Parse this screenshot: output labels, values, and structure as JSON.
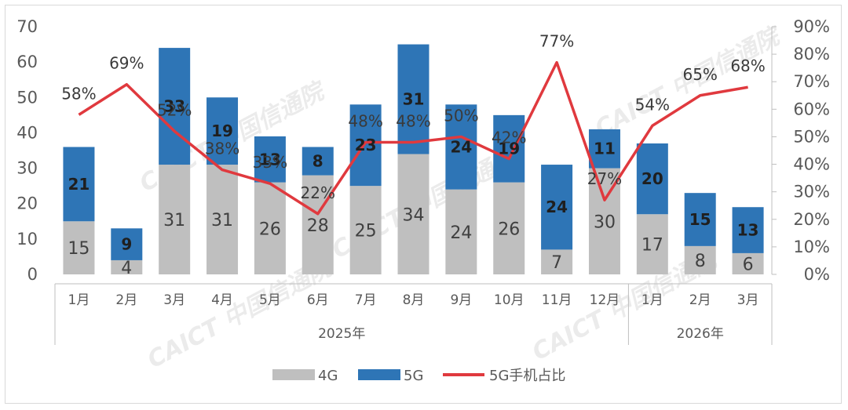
{
  "chart_data": {
    "type": "bar",
    "stacked": true,
    "categories": [
      "1月",
      "2月",
      "3月",
      "4月",
      "5月",
      "6月",
      "7月",
      "8月",
      "9月",
      "10月",
      "11月",
      "12月",
      "1月",
      "2月",
      "3月"
    ],
    "groups": [
      {
        "label": "2025年",
        "count": 12
      },
      {
        "label": "2026年",
        "count": 3
      }
    ],
    "series": [
      {
        "name": "4G",
        "color": "#bfbfbf",
        "values": [
          15,
          4,
          31,
          31,
          26,
          28,
          25,
          34,
          24,
          26,
          7,
          30,
          17,
          8,
          6
        ]
      },
      {
        "name": "5G",
        "color": "#2e75b6",
        "values": [
          21,
          9,
          33,
          19,
          13,
          8,
          23,
          31,
          24,
          19,
          24,
          11,
          20,
          15,
          13
        ]
      }
    ],
    "line_series": {
      "name": "5G手机占比",
      "color": "#e0393e",
      "axis": "right",
      "values": [
        58,
        69,
        52,
        38,
        33,
        22,
        48,
        48,
        50,
        42,
        77,
        27,
        54,
        65,
        68
      ],
      "labels": [
        "58%",
        "69%",
        "52%",
        "38%",
        "33%",
        "22%",
        "48%",
        "48%",
        "50%",
        "42%",
        "77%",
        "27%",
        "54%",
        "65%",
        "68%"
      ]
    },
    "y_left": {
      "min": 0,
      "max": 70,
      "step": 10,
      "ticks": [
        "0",
        "10",
        "20",
        "30",
        "40",
        "50",
        "60",
        "70"
      ]
    },
    "y_right": {
      "min": 0,
      "max": 90,
      "step": 10,
      "ticks": [
        "0%",
        "10%",
        "20%",
        "30%",
        "40%",
        "50%",
        "60%",
        "70%",
        "80%",
        "90%"
      ]
    },
    "legend": {
      "position": "bottom",
      "items": [
        "4G",
        "5G",
        "5G手机占比"
      ]
    },
    "grid": false,
    "watermark": "CAICT 中国信通院"
  }
}
